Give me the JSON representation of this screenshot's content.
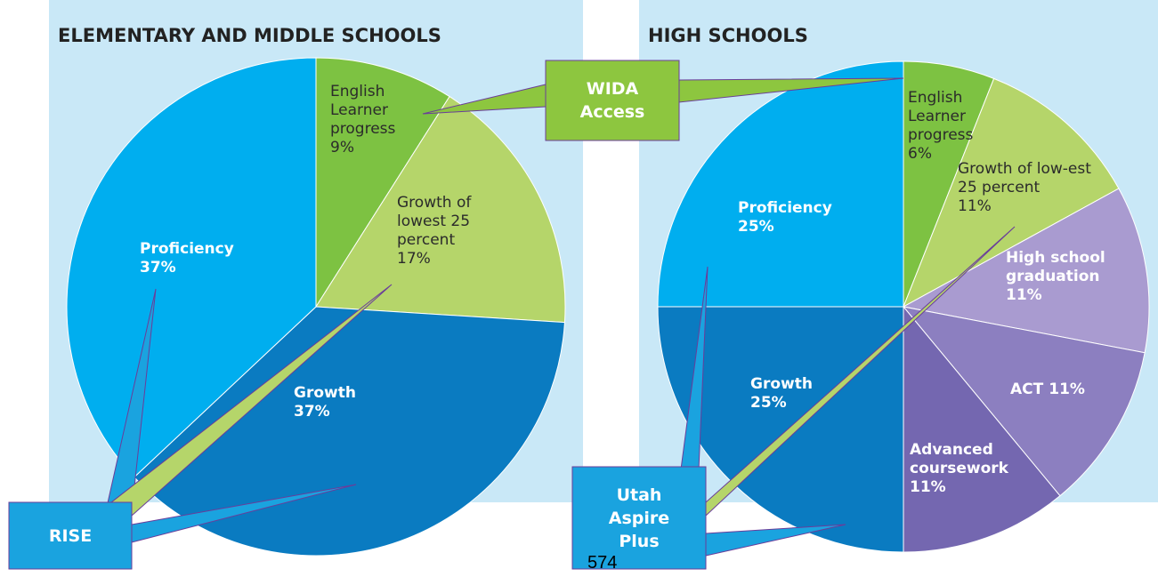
{
  "chart_data": [
    {
      "type": "pie",
      "title": "ELEMENTARY AND MIDDLE SCHOOLS",
      "categories": [
        "English Learner progress",
        "Growth of lowest 25 percent",
        "Growth",
        "Proficiency"
      ],
      "values": [
        9,
        17,
        37,
        37
      ],
      "value_labels": [
        "9%",
        "17%",
        "37%",
        "37%"
      ],
      "colors": [
        "#7dc242",
        "#b5d56a",
        "#0a7bc1",
        "#00aeef"
      ]
    },
    {
      "type": "pie",
      "title": "HIGH SCHOOLS",
      "categories": [
        "English Learner progress",
        "Growth of low-est 25 percent",
        "High school graduation",
        "ACT",
        "Advanced coursework",
        "Growth",
        "Proficiency"
      ],
      "values": [
        6,
        11,
        11,
        11,
        11,
        25,
        25
      ],
      "value_labels": [
        "6%",
        "11%",
        "11%",
        "11%",
        "11%",
        "25%",
        "25%"
      ],
      "colors": [
        "#7dc242",
        "#b5d56a",
        "#a99bd0",
        "#8c7fc0",
        "#7467b0",
        "#0a7bc1",
        "#00aeef"
      ]
    }
  ],
  "annotations": [
    "WIDA Access",
    "RISE",
    "Utah Aspire Plus"
  ],
  "page_number": "574"
}
